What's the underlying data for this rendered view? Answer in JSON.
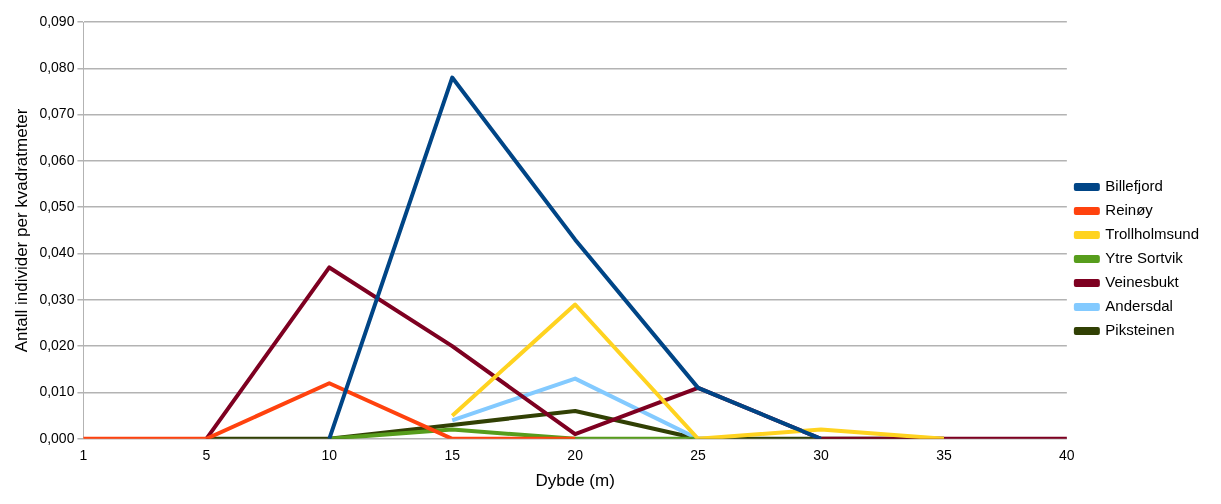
{
  "chart_data": {
    "type": "line",
    "xlabel": "Dybde (m)",
    "ylabel": "Antall individer per kvadratmeter",
    "categories": [
      "1",
      "5",
      "10",
      "15",
      "20",
      "25",
      "30",
      "35",
      "40"
    ],
    "series": [
      {
        "name": "Billefjord",
        "color": "#004586",
        "values": [
          null,
          null,
          0,
          0.078,
          0.043,
          0.011,
          0,
          null,
          null
        ]
      },
      {
        "name": "Reinøy",
        "color": "#ff420e",
        "values": [
          0,
          0,
          0.012,
          0,
          0,
          null,
          null,
          null,
          null
        ]
      },
      {
        "name": "Trollholmsund",
        "color": "#ffd320",
        "values": [
          null,
          null,
          null,
          0.005,
          0.029,
          0,
          0.002,
          0,
          null
        ]
      },
      {
        "name": "Ytre Sortvik",
        "color": "#579d1c",
        "values": [
          null,
          null,
          0,
          0.002,
          0,
          0,
          null,
          null,
          null
        ]
      },
      {
        "name": "Veinesbukt",
        "color": "#7e0021",
        "values": [
          null,
          0,
          0.037,
          0.02,
          0.001,
          0.011,
          0,
          0,
          0
        ]
      },
      {
        "name": "Andersdal",
        "color": "#83caff",
        "values": [
          null,
          null,
          null,
          0.004,
          0.013,
          0,
          null,
          null,
          null
        ]
      },
      {
        "name": "Piksteinen",
        "color": "#314004",
        "values": [
          null,
          0,
          0,
          0.003,
          0.006,
          0,
          0,
          0,
          null
        ]
      }
    ],
    "ylim": [
      0,
      0.09
    ],
    "yticks": [
      {
        "value": 0,
        "label": "0,000"
      },
      {
        "value": 0.01,
        "label": "0,010"
      },
      {
        "value": 0.02,
        "label": "0,020"
      },
      {
        "value": 0.03,
        "label": "0,030"
      },
      {
        "value": 0.04,
        "label": "0,040"
      },
      {
        "value": 0.05,
        "label": "0,050"
      },
      {
        "value": 0.06,
        "label": "0,060"
      },
      {
        "value": 0.07,
        "label": "0,070"
      },
      {
        "value": 0.08,
        "label": "0,080"
      },
      {
        "value": 0.09,
        "label": "0,090"
      }
    ],
    "grid": "y",
    "legend": "right",
    "marker": "none",
    "line_style": "solid"
  }
}
